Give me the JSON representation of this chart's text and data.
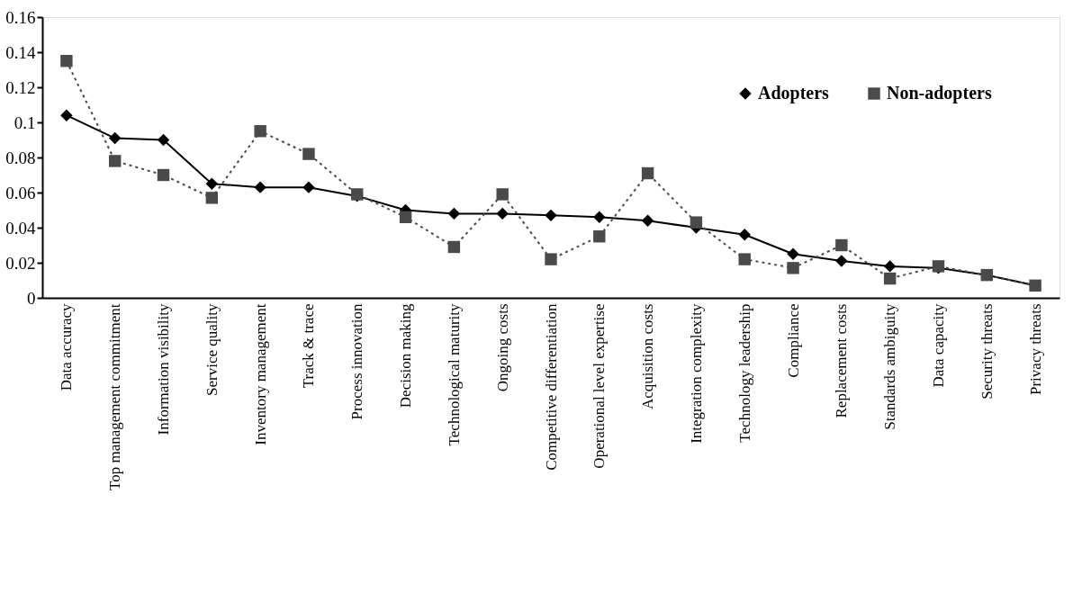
{
  "chart_data": {
    "type": "line",
    "categories": [
      "Data accuracy",
      "Top management commitment",
      "Information visibility",
      "Service quality",
      "Inventory management",
      "Track & trace",
      "Process innovation",
      "Decision making",
      "Technological maturity",
      "Ongoing costs",
      "Competitive differentiation",
      "Operational level expertise",
      "Acquisition costs",
      "Integration complexity",
      "Technology leadership",
      "Compliance",
      "Replacement costs",
      "Standards ambiguity",
      "Data capacity",
      "Security threats",
      "Privacy threats"
    ],
    "series": [
      {
        "name": "Adopters",
        "color": "#000000",
        "marker": "diamond",
        "line_style": "solid",
        "values": [
          0.104,
          0.091,
          0.09,
          0.065,
          0.063,
          0.063,
          0.058,
          0.05,
          0.048,
          0.048,
          0.047,
          0.046,
          0.044,
          0.04,
          0.036,
          0.025,
          0.021,
          0.018,
          0.017,
          0.013,
          0.007
        ]
      },
      {
        "name": "Non-adopters",
        "color": "#4a4a4a",
        "marker": "square",
        "line_style": "dotted",
        "values": [
          0.135,
          0.078,
          0.07,
          0.057,
          0.095,
          0.082,
          0.059,
          0.046,
          0.029,
          0.059,
          0.022,
          0.035,
          0.071,
          0.043,
          0.022,
          0.017,
          0.03,
          0.011,
          0.018,
          0.013,
          0.007
        ]
      }
    ],
    "ylim": [
      0,
      0.16
    ],
    "yticks": [
      0,
      0.02,
      0.04,
      0.06,
      0.08,
      0.1,
      0.12,
      0.14,
      0.16
    ],
    "grid": false,
    "legend": "top right"
  }
}
